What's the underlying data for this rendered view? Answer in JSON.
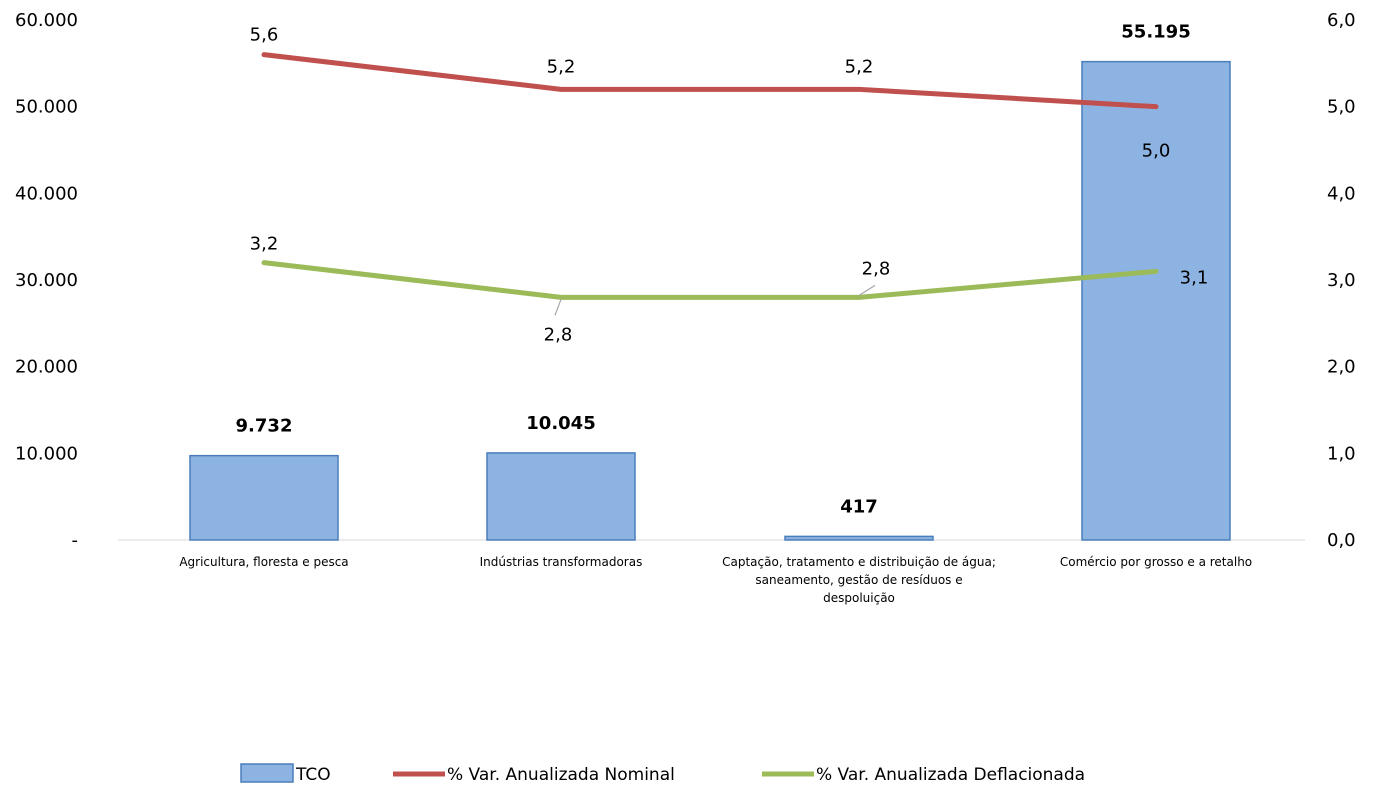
{
  "chart_data": {
    "type": "bar",
    "categories": [
      [
        "Agricultura, floresta e pesca"
      ],
      [
        "Indústrias transformadoras"
      ],
      [
        "Captação, tratamento e distribuição de água;",
        "saneamento, gestão de resíduos e",
        "despoluição"
      ],
      [
        "Comércio por grosso e a retalho"
      ]
    ],
    "y_left": {
      "min": 0,
      "max": 60000,
      "ticks": [
        "-",
        "10.000",
        "20.000",
        "30.000",
        "40.000",
        "50.000",
        "60.000"
      ]
    },
    "y_right": {
      "min": 0,
      "max": 6,
      "ticks": [
        "0,0",
        "1,0",
        "2,0",
        "3,0",
        "4,0",
        "5,0",
        "6,0"
      ]
    },
    "series": [
      {
        "name": "TCO",
        "type": "bar",
        "axis": "left",
        "values": [
          9732,
          10045,
          417,
          55195
        ],
        "labels": [
          "9.732",
          "10.045",
          "417",
          "55.195"
        ],
        "color": "#8DB3E2",
        "stroke": "#4A7EBB"
      },
      {
        "name": "% Var. Anualizada Nominal",
        "type": "line",
        "axis": "right",
        "values": [
          5.6,
          5.2,
          5.2,
          5.0
        ],
        "labels": [
          "5,6",
          "5,2",
          "5,2",
          "5,0"
        ],
        "color": "#C0504D"
      },
      {
        "name": "% Var. Anualizada Deflacionada",
        "type": "line",
        "axis": "right",
        "values": [
          3.2,
          2.8,
          2.8,
          3.1
        ],
        "labels": [
          "3,2",
          "2,8",
          "2,8",
          "3,1"
        ],
        "color": "#9BBB59"
      }
    ],
    "legend": "bottom",
    "grid": false
  }
}
